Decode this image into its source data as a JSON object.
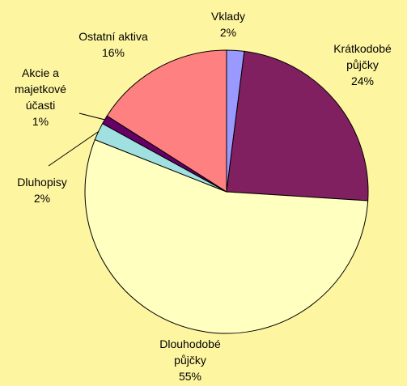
{
  "chart_data": {
    "type": "pie",
    "categories": [
      "Vklady",
      "Krátkodobé půjčky",
      "Dlouhodobé půjčky",
      "Dluhopisy",
      "Akcie a majetkové účasti",
      "Ostatní aktiva"
    ],
    "values": [
      2,
      24,
      55,
      2,
      1,
      16
    ],
    "value_labels": [
      "2%",
      "24%",
      "55%",
      "2%",
      "1%",
      "16%"
    ],
    "colors": [
      "#9999ff",
      "#802060",
      "#ffffc0",
      "#a0e0e0",
      "#660066",
      "#ff8080"
    ]
  }
}
